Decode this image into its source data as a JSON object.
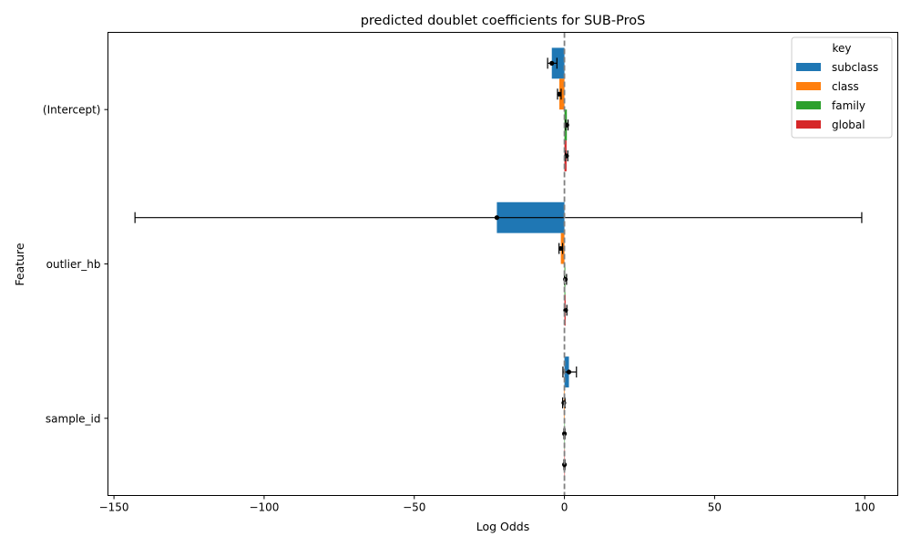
{
  "chart_data": {
    "type": "bar",
    "orientation": "horizontal",
    "title": "predicted doublet coefficients for SUB-ProS",
    "xlabel": "Log Odds",
    "ylabel": "Feature",
    "xlim": [
      -152,
      111
    ],
    "xticks": [
      -150,
      -100,
      -50,
      0,
      50,
      100
    ],
    "xtick_labels": [
      "−150",
      "−100",
      "−50",
      "0",
      "50",
      "100"
    ],
    "categories": [
      "(Intercept)",
      "outlier_hb",
      "sample_id"
    ],
    "zero_line": {
      "value": 0,
      "style": "dashed",
      "color": "#808080"
    },
    "legend": {
      "title": "key",
      "position": "top-right"
    },
    "series": [
      {
        "name": "subclass",
        "color": "#1f77b4",
        "values": [
          -4.2,
          -22.5,
          1.5
        ],
        "ci": [
          [
            -5.6,
            -2.5
          ],
          [
            -143,
            99
          ],
          [
            -0.5,
            4.0
          ]
        ]
      },
      {
        "name": "class",
        "color": "#ff7f0e",
        "values": [
          -1.7,
          -1.2,
          -0.2
        ],
        "ci": [
          [
            -2.3,
            -1.1
          ],
          [
            -1.8,
            -0.6
          ],
          [
            -0.6,
            0.2
          ]
        ]
      },
      {
        "name": "family",
        "color": "#2ca02c",
        "values": [
          0.8,
          0.3,
          0.0
        ],
        "ci": [
          [
            0.4,
            1.2
          ],
          [
            0.0,
            0.7
          ],
          [
            -0.2,
            0.2
          ]
        ]
      },
      {
        "name": "global",
        "color": "#d62728",
        "values": [
          0.7,
          0.4,
          0.0
        ],
        "ci": [
          [
            0.3,
            1.1
          ],
          [
            0.0,
            0.8
          ],
          [
            -0.2,
            0.2
          ]
        ]
      }
    ]
  }
}
